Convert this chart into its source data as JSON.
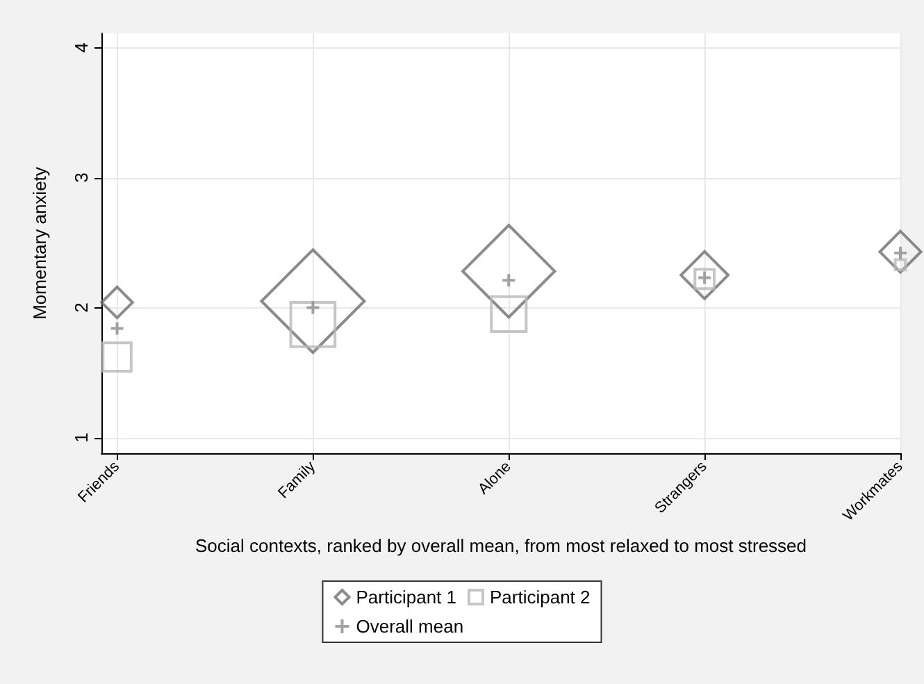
{
  "chart_data": {
    "type": "bubble",
    "xlabel": "Social contexts, ranked by overall mean, from most relaxed to most stressed",
    "ylabel": "Momentary anxiety",
    "categories": [
      "Friends",
      "Family",
      "Alone",
      "Strangers",
      "Workmates"
    ],
    "series": [
      {
        "name": "Participant 1",
        "type": "bubble",
        "marker": "diamond",
        "color": "#6e6e6e",
        "values": [
          2.04,
          2.05,
          2.28,
          2.25,
          2.43
        ],
        "sizes": [
          0.09,
          1,
          0.8,
          0.21,
          0.16
        ]
      },
      {
        "name": "Participant 2",
        "type": "bubble",
        "marker": "square",
        "color": "#b8b8b8",
        "values": [
          1.62,
          1.87,
          1.95,
          2.22,
          2.33
        ],
        "sizes": [
          0.15,
          0.37,
          0.23,
          0.07,
          0.02
        ]
      },
      {
        "name": "Overall mean",
        "type": "scatter",
        "marker": "cross",
        "color": "#8c8c8c",
        "values": [
          1.84,
          2.0,
          2.21,
          2.23,
          2.42
        ]
      }
    ],
    "ylim": [
      0.88,
      4.11
    ],
    "yticks": [
      1,
      2,
      3,
      4
    ],
    "grid": true,
    "legend": "bottom"
  }
}
